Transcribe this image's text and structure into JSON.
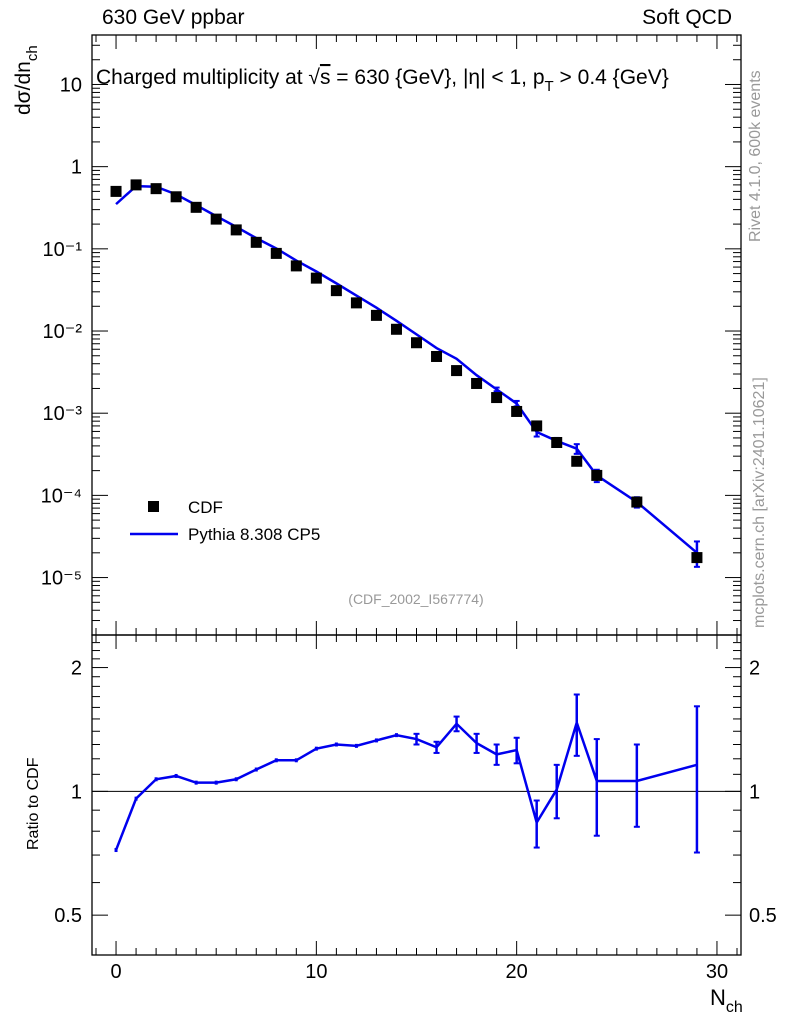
{
  "header": {
    "left": "630 GeV ppbar",
    "right": "Soft QCD"
  },
  "side_labels": {
    "rivet": "Rivet 4.1.0,  600k events",
    "mcplots": "mcplots.cern.ch [arXiv:2401.10621]"
  },
  "chart_data": {
    "type": "line",
    "title": "Charged multiplicity at √s = 630 {GeV}, |η| < 1, p_T > 0.4 {GeV}",
    "analysis_id": "(CDF_2002_I567774)",
    "xlabel": "N_ch",
    "ylabel": "dσ/dn_ch",
    "ratio_ylabel": "Ratio to CDF",
    "xlim": [
      -1.2,
      31.2
    ],
    "ylim": [
      2e-06,
      40
    ],
    "ylog": true,
    "ratio_ylim": [
      0.4,
      2.4
    ],
    "x_ticks": [
      0,
      10,
      20,
      30
    ],
    "y_ticks": [
      {
        "value": 1e-05,
        "label": "10⁻⁵"
      },
      {
        "value": 0.0001,
        "label": "10⁻⁴"
      },
      {
        "value": 0.001,
        "label": "10⁻³"
      },
      {
        "value": 0.01,
        "label": "10⁻²"
      },
      {
        "value": 0.1,
        "label": "10⁻¹"
      },
      {
        "value": 1,
        "label": "1"
      },
      {
        "value": 10,
        "label": "10"
      }
    ],
    "ratio_ticks": [
      0.5,
      1,
      2
    ],
    "legend": [
      {
        "label": "CDF",
        "marker": "square",
        "color": "#000000"
      },
      {
        "label": "Pythia 8.308 CP5",
        "marker": "line",
        "color": "#0000ee"
      }
    ],
    "series": [
      {
        "name": "CDF",
        "x": [
          0,
          1,
          2,
          3,
          4,
          5,
          6,
          7,
          8,
          9,
          10,
          11,
          12,
          13,
          14,
          15,
          16,
          17,
          18,
          19,
          20,
          21,
          22,
          23,
          24,
          26,
          29
        ],
        "values": [
          0.5,
          0.6,
          0.54,
          0.43,
          0.32,
          0.23,
          0.17,
          0.12,
          0.088,
          0.062,
          0.044,
          0.031,
          0.022,
          0.0155,
          0.0105,
          0.0072,
          0.0049,
          0.0033,
          0.0023,
          0.00155,
          0.00105,
          0.0007,
          0.00044,
          0.00026,
          0.000175,
          8.3e-05,
          1.75e-05
        ]
      },
      {
        "name": "Pythia 8.308 CP5",
        "x": [
          0,
          1,
          2,
          3,
          4,
          5,
          6,
          7,
          8,
          9,
          10,
          11,
          12,
          13,
          14,
          15,
          16,
          17,
          18,
          19,
          20,
          21,
          22,
          23,
          24,
          26,
          29
        ],
        "values": [
          0.35,
          0.58,
          0.57,
          0.46,
          0.34,
          0.25,
          0.185,
          0.135,
          0.101,
          0.072,
          0.053,
          0.038,
          0.027,
          0.0192,
          0.0133,
          0.0091,
          0.0062,
          0.0046,
          0.0029,
          0.00195,
          0.00131,
          0.00059,
          0.00046,
          0.00037,
          0.000175,
          8.3e-05,
          2e-05
        ],
        "err_low": [
          0,
          0,
          0,
          0,
          0,
          0,
          0,
          0,
          0,
          0,
          0,
          0,
          0,
          0,
          0,
          0,
          0,
          0,
          0,
          0.0001,
          0.0001,
          7e-05,
          4e-05,
          5e-05,
          3e-05,
          1.2e-05,
          6.5e-06
        ],
        "err_high": [
          0,
          0,
          0,
          0,
          0,
          0,
          0,
          0,
          0,
          0,
          0,
          0,
          0,
          0,
          0,
          0,
          0,
          0,
          0,
          0.0001,
          0.0001,
          7e-05,
          4e-05,
          5e-05,
          3e-05,
          1.2e-05,
          7.5e-06
        ]
      }
    ],
    "ratio": {
      "x": [
        0,
        1,
        2,
        3,
        4,
        5,
        6,
        7,
        8,
        9,
        10,
        11,
        12,
        13,
        14,
        15,
        16,
        17,
        18,
        19,
        20,
        21,
        22,
        23,
        24,
        26,
        29
      ],
      "values": [
        0.72,
        0.96,
        1.07,
        1.09,
        1.05,
        1.05,
        1.07,
        1.13,
        1.19,
        1.19,
        1.27,
        1.3,
        1.29,
        1.33,
        1.37,
        1.34,
        1.28,
        1.46,
        1.31,
        1.23,
        1.26,
        0.84,
        1.01,
        1.47,
        1.06,
        1.06,
        1.16
      ],
      "err": [
        0,
        0,
        0,
        0,
        0,
        0,
        0,
        0,
        0,
        0,
        0,
        0,
        0,
        0,
        0,
        0.04,
        0.04,
        0.06,
        0.07,
        0.07,
        0.09,
        0.11,
        0.15,
        0.25,
        0.28,
        0.24,
        0.45
      ]
    }
  }
}
